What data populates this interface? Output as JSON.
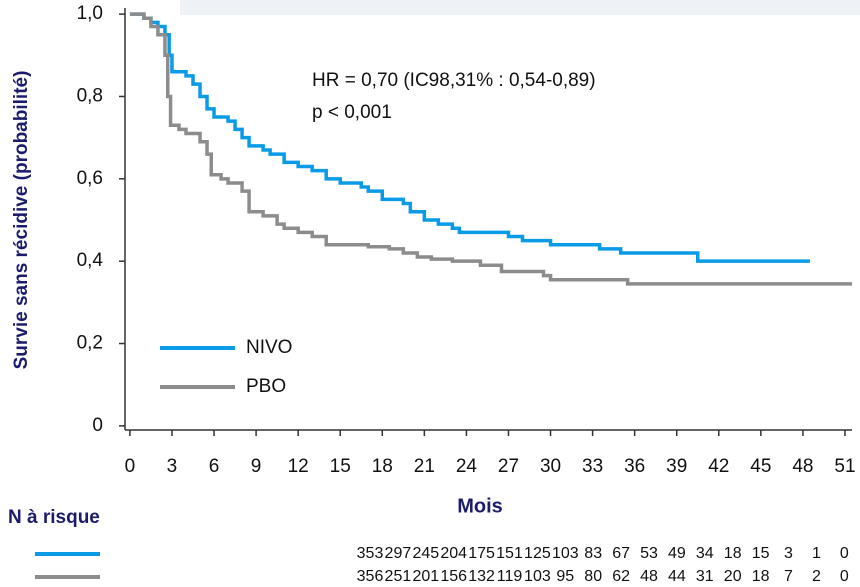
{
  "chart_data": {
    "type": "step",
    "y_label": "Survie sans récidive (probabilité)",
    "x_label": "Mois",
    "annotations": [
      "HR = 0,70 (IC98,31% : 0,54-0,89)",
      "p < 0,001"
    ],
    "xlim": [
      -0.35,
      52
    ],
    "ylim": [
      -0.01,
      1.01
    ],
    "xticks": [
      0,
      3,
      6,
      9,
      12,
      15,
      18,
      21,
      24,
      27,
      30,
      33,
      36,
      39,
      42,
      45,
      48,
      51
    ],
    "yticks": [
      {
        "value": 1.0,
        "label": "1,0"
      },
      {
        "value": 0.8,
        "label": "0,8"
      },
      {
        "value": 0.6,
        "label": "0,6"
      },
      {
        "value": 0.4,
        "label": "0,4"
      },
      {
        "value": 0.2,
        "label": "0,2"
      },
      0
    ],
    "series": [
      {
        "name": "NIVO",
        "color": "#0a9be6",
        "x": [
          0,
          1,
          1.5,
          2,
          2.5,
          2.8,
          3,
          4,
          4.5,
          5,
          5.5,
          6,
          7,
          7.5,
          8,
          8.5,
          9.5,
          10,
          11,
          12,
          13,
          14,
          15,
          16.5,
          17,
          18,
          19.5,
          20,
          21,
          22,
          23,
          23.5,
          27,
          28,
          30,
          33.5,
          35,
          40.5,
          48.5
        ],
        "values": [
          1.0,
          0.99,
          0.98,
          0.97,
          0.95,
          0.9,
          0.86,
          0.85,
          0.83,
          0.8,
          0.77,
          0.75,
          0.74,
          0.72,
          0.7,
          0.68,
          0.67,
          0.66,
          0.64,
          0.63,
          0.62,
          0.6,
          0.59,
          0.58,
          0.57,
          0.55,
          0.54,
          0.52,
          0.5,
          0.49,
          0.48,
          0.47,
          0.46,
          0.45,
          0.44,
          0.43,
          0.42,
          0.4,
          0.4
        ]
      },
      {
        "name": "PBO",
        "color": "#8c8c8c",
        "x": [
          0,
          1,
          1.5,
          2,
          2.5,
          2.7,
          2.9,
          3.5,
          4,
          5,
          5.5,
          5.8,
          6.5,
          7,
          8,
          8.5,
          9.5,
          10.5,
          11,
          12,
          13,
          14,
          17,
          18.5,
          19.5,
          20.5,
          21.5,
          23,
          25,
          26.5,
          29.5,
          30,
          35.5,
          51.5
        ],
        "values": [
          1.0,
          0.99,
          0.97,
          0.95,
          0.9,
          0.8,
          0.73,
          0.72,
          0.71,
          0.69,
          0.66,
          0.61,
          0.6,
          0.59,
          0.57,
          0.52,
          0.51,
          0.49,
          0.48,
          0.47,
          0.46,
          0.44,
          0.435,
          0.43,
          0.42,
          0.41,
          0.405,
          0.4,
          0.39,
          0.375,
          0.365,
          0.355,
          0.345,
          0.345
        ]
      }
    ],
    "risk_table": {
      "title": "N à risque",
      "rows": [
        [
          353,
          297,
          245,
          204,
          175,
          151,
          125,
          103,
          83,
          67,
          53,
          49,
          34,
          18,
          15,
          3,
          1,
          0
        ],
        [
          356,
          251,
          201,
          156,
          132,
          119,
          103,
          95,
          80,
          62,
          48,
          44,
          31,
          20,
          18,
          7,
          2,
          0
        ]
      ]
    }
  }
}
